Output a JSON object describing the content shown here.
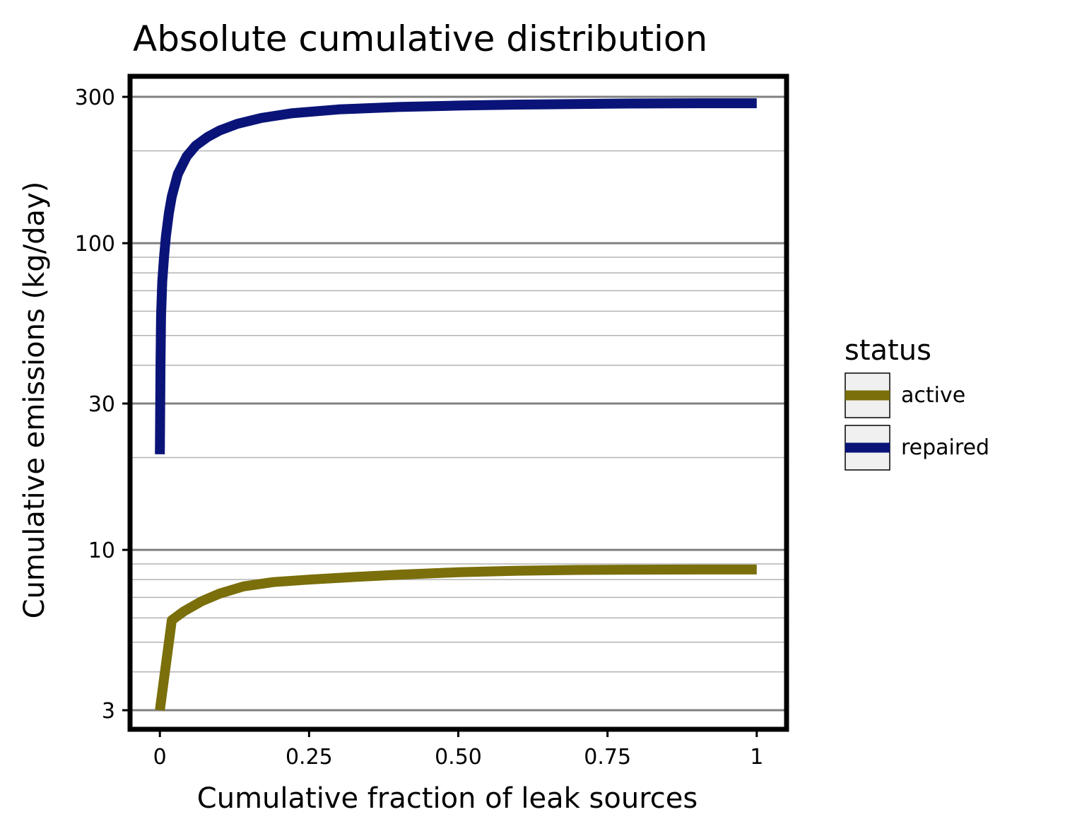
{
  "chart_data": {
    "type": "line",
    "title": "Absolute cumulative distribution",
    "xlabel": "Cumulative fraction of leak sources",
    "ylabel": "Cumulative emissions (kg/day)",
    "xlim": [
      -0.05,
      1.05
    ],
    "ylim": [
      2.6,
      350
    ],
    "y_scale": "log",
    "x_ticks": [
      0,
      0.25,
      0.5,
      0.75,
      1
    ],
    "x_tick_labels": [
      "0",
      "0.25",
      "0.50",
      "0.75",
      "1"
    ],
    "y_ticks": [
      3,
      10,
      30,
      100,
      300
    ],
    "y_tick_labels": [
      "3",
      "10",
      "30",
      "100",
      "300"
    ],
    "grid": true,
    "legend": {
      "title": "status",
      "placement": "right"
    },
    "series": [
      {
        "name": "active",
        "color": "#7a6f0a",
        "x": [
          0.0,
          0.02,
          0.04,
          0.07,
          0.1,
          0.14,
          0.19,
          0.25,
          0.32,
          0.4,
          0.5,
          0.6,
          0.7,
          0.8,
          0.9,
          1.0
        ],
        "y": [
          3.0,
          5.9,
          6.3,
          6.8,
          7.2,
          7.6,
          7.85,
          8.0,
          8.15,
          8.3,
          8.45,
          8.55,
          8.6,
          8.62,
          8.63,
          8.63
        ]
      },
      {
        "name": "repaired",
        "color": "#0a1478",
        "x": [
          0.0,
          0.001,
          0.002,
          0.004,
          0.007,
          0.01,
          0.015,
          0.02,
          0.03,
          0.045,
          0.06,
          0.08,
          0.1,
          0.13,
          0.17,
          0.22,
          0.3,
          0.4,
          0.5,
          0.6,
          0.75,
          0.9,
          1.0
        ],
        "y": [
          20.5,
          40,
          58,
          75,
          90,
          105,
          125,
          142,
          168,
          192,
          208,
          222,
          233,
          245,
          256,
          265,
          273,
          278,
          281,
          283,
          285,
          286,
          286
        ]
      }
    ]
  }
}
